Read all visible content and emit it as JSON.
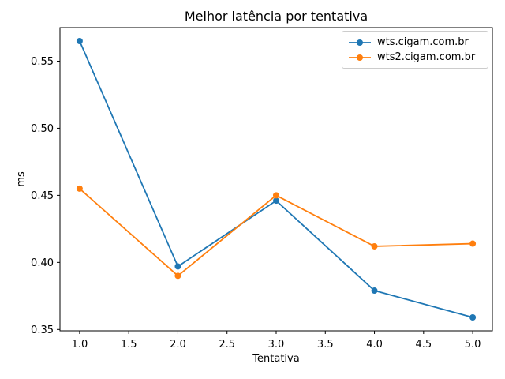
{
  "chart_data": {
    "type": "line",
    "title": "Melhor latência por tentativa",
    "xlabel": "Tentativa",
    "ylabel": "ms",
    "x": [
      1,
      2,
      3,
      4,
      5
    ],
    "series": [
      {
        "name": "wts.cigam.com.br",
        "color": "#1f77b4",
        "marker": "o",
        "values": [
          0.565,
          0.397,
          0.446,
          0.379,
          0.359
        ]
      },
      {
        "name": "wts2.cigam.com.br",
        "color": "#ff7f0e",
        "marker": "o",
        "values": [
          0.455,
          0.39,
          0.45,
          0.412,
          0.414
        ]
      }
    ],
    "xlim": [
      0.8,
      5.2
    ],
    "ylim": [
      0.349,
      0.575
    ],
    "xticks": [
      1.0,
      1.5,
      2.0,
      2.5,
      3.0,
      3.5,
      4.0,
      4.5,
      5.0
    ],
    "xtick_labels": [
      "1.0",
      "1.5",
      "2.0",
      "2.5",
      "3.0",
      "3.5",
      "4.0",
      "4.5",
      "5.0"
    ],
    "yticks": [
      0.35,
      0.4,
      0.45,
      0.5,
      0.55
    ],
    "ytick_labels": [
      "0.35",
      "0.40",
      "0.45",
      "0.50",
      "0.55"
    ],
    "grid": false,
    "legend_position": "upper right",
    "background_color": "#ffffff",
    "text_color": "#000000",
    "spine_color": "#000000",
    "legend_border_color": "#cccccc"
  }
}
